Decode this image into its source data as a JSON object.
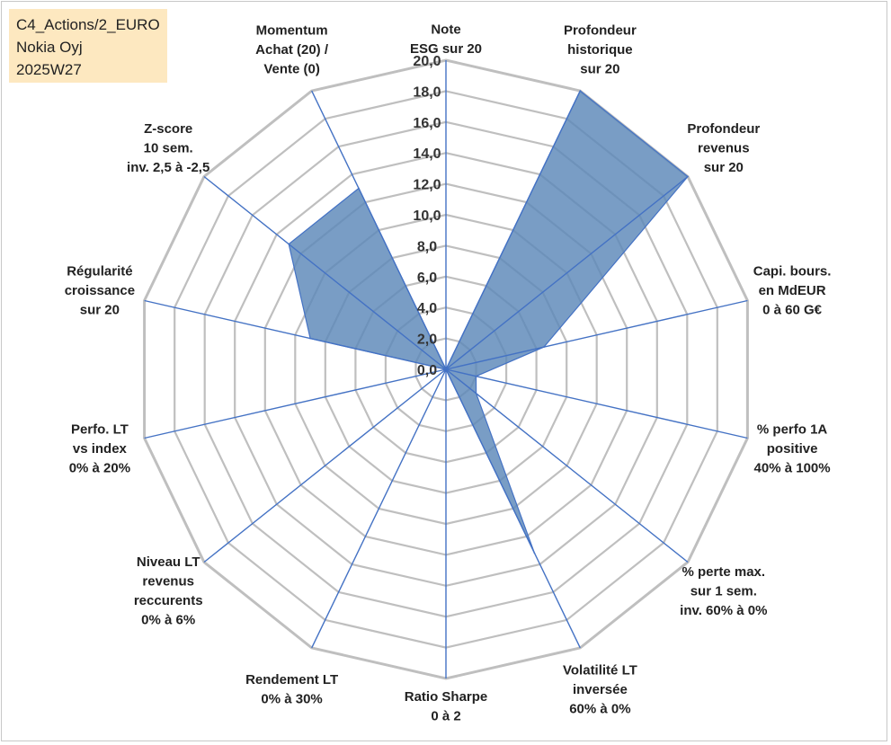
{
  "info_box": {
    "line1": "C4_Actions/2_EURO",
    "line2": "Nokia Oyj",
    "line3": "2025W27"
  },
  "colors": {
    "fill": "#5b87b8",
    "stroke": "#4472c4",
    "grid": "#bfbfbf",
    "axis": "#4472c4",
    "info_bg": "#fde8c0"
  },
  "chart_data": {
    "type": "radar",
    "range": [
      0,
      20
    ],
    "tick_step": 2,
    "tick_labels": [
      "0,0",
      "2,0",
      "4,0",
      "6,0",
      "8,0",
      "10,0",
      "12,0",
      "14,0",
      "16,0",
      "18,0",
      "20,0"
    ],
    "axes": [
      {
        "label": [
          "Note",
          "ESG sur 20"
        ],
        "value": 0
      },
      {
        "label": [
          "Profondeur",
          "historique",
          "sur 20"
        ],
        "value": 20
      },
      {
        "label": [
          "Profondeur",
          "revenus",
          "sur 20"
        ],
        "value": 20
      },
      {
        "label": [
          "Capi. bours.",
          "en MdEUR",
          "0 à 60 G€"
        ],
        "value": 6.5
      },
      {
        "label": [
          "% perfo 1A",
          "positive",
          "40% à 100%"
        ],
        "value": 2.0
      },
      {
        "label": [
          "% perte max.",
          "sur 1 sem.",
          "inv. 60% à 0%"
        ],
        "value": 2.5
      },
      {
        "label": [
          "Volatilité LT",
          "inversée",
          "60% à 0%"
        ],
        "value": 13.2
      },
      {
        "label": [
          "Ratio Sharpe",
          "0 à 2"
        ],
        "value": 0
      },
      {
        "label": [
          "Rendement LT",
          "0% à 30%"
        ],
        "value": 0
      },
      {
        "label": [
          "Niveau LT",
          "revenus",
          "reccurents",
          "0% à 6%"
        ],
        "value": 0
      },
      {
        "label": [
          "Perfo. LT",
          "vs index",
          "0% à 20%"
        ],
        "value": 0
      },
      {
        "label": [
          "Régularité",
          "croissance",
          "sur 20"
        ],
        "value": 9.0
      },
      {
        "label": [
          "Z-score",
          "10 sem.",
          "inv. 2,5 à -2,5"
        ],
        "value": 13.0
      },
      {
        "label": [
          "Momentum",
          "Achat (20) /",
          "Vente (0)"
        ],
        "value": 13.0
      }
    ]
  }
}
